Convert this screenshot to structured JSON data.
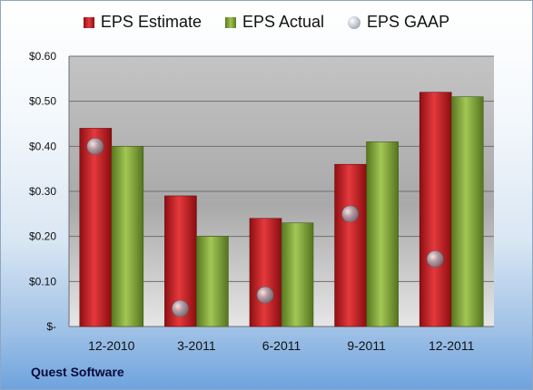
{
  "chart_data": {
    "type": "bar",
    "categories": [
      "12-2010",
      "3-2011",
      "6-2011",
      "9-2011",
      "12-2011"
    ],
    "series": [
      {
        "name": "EPS Estimate",
        "type": "bar",
        "color": "#c8191d",
        "values": [
          0.44,
          0.29,
          0.24,
          0.36,
          0.52
        ]
      },
      {
        "name": "EPS Actual",
        "type": "bar",
        "color": "#7ea23b",
        "values": [
          0.4,
          0.2,
          0.23,
          0.41,
          0.51
        ]
      },
      {
        "name": "EPS GAAP",
        "type": "scatter",
        "color": "#aab4be",
        "values": [
          0.4,
          0.04,
          0.07,
          0.25,
          0.15
        ]
      }
    ],
    "ylim": [
      0,
      0.6
    ],
    "yticks": [
      0,
      0.1,
      0.2,
      0.3,
      0.4,
      0.5,
      0.6
    ],
    "ytick_labels": [
      "$-",
      "$0.10",
      "$0.20",
      "$0.30",
      "$0.40",
      "$0.50",
      "$0.60"
    ],
    "grid": true,
    "legend_position": "top"
  },
  "legend": {
    "estimate": "EPS Estimate",
    "actual": "EPS Actual",
    "gaap": "EPS GAAP"
  },
  "source_label": "Quest Software"
}
